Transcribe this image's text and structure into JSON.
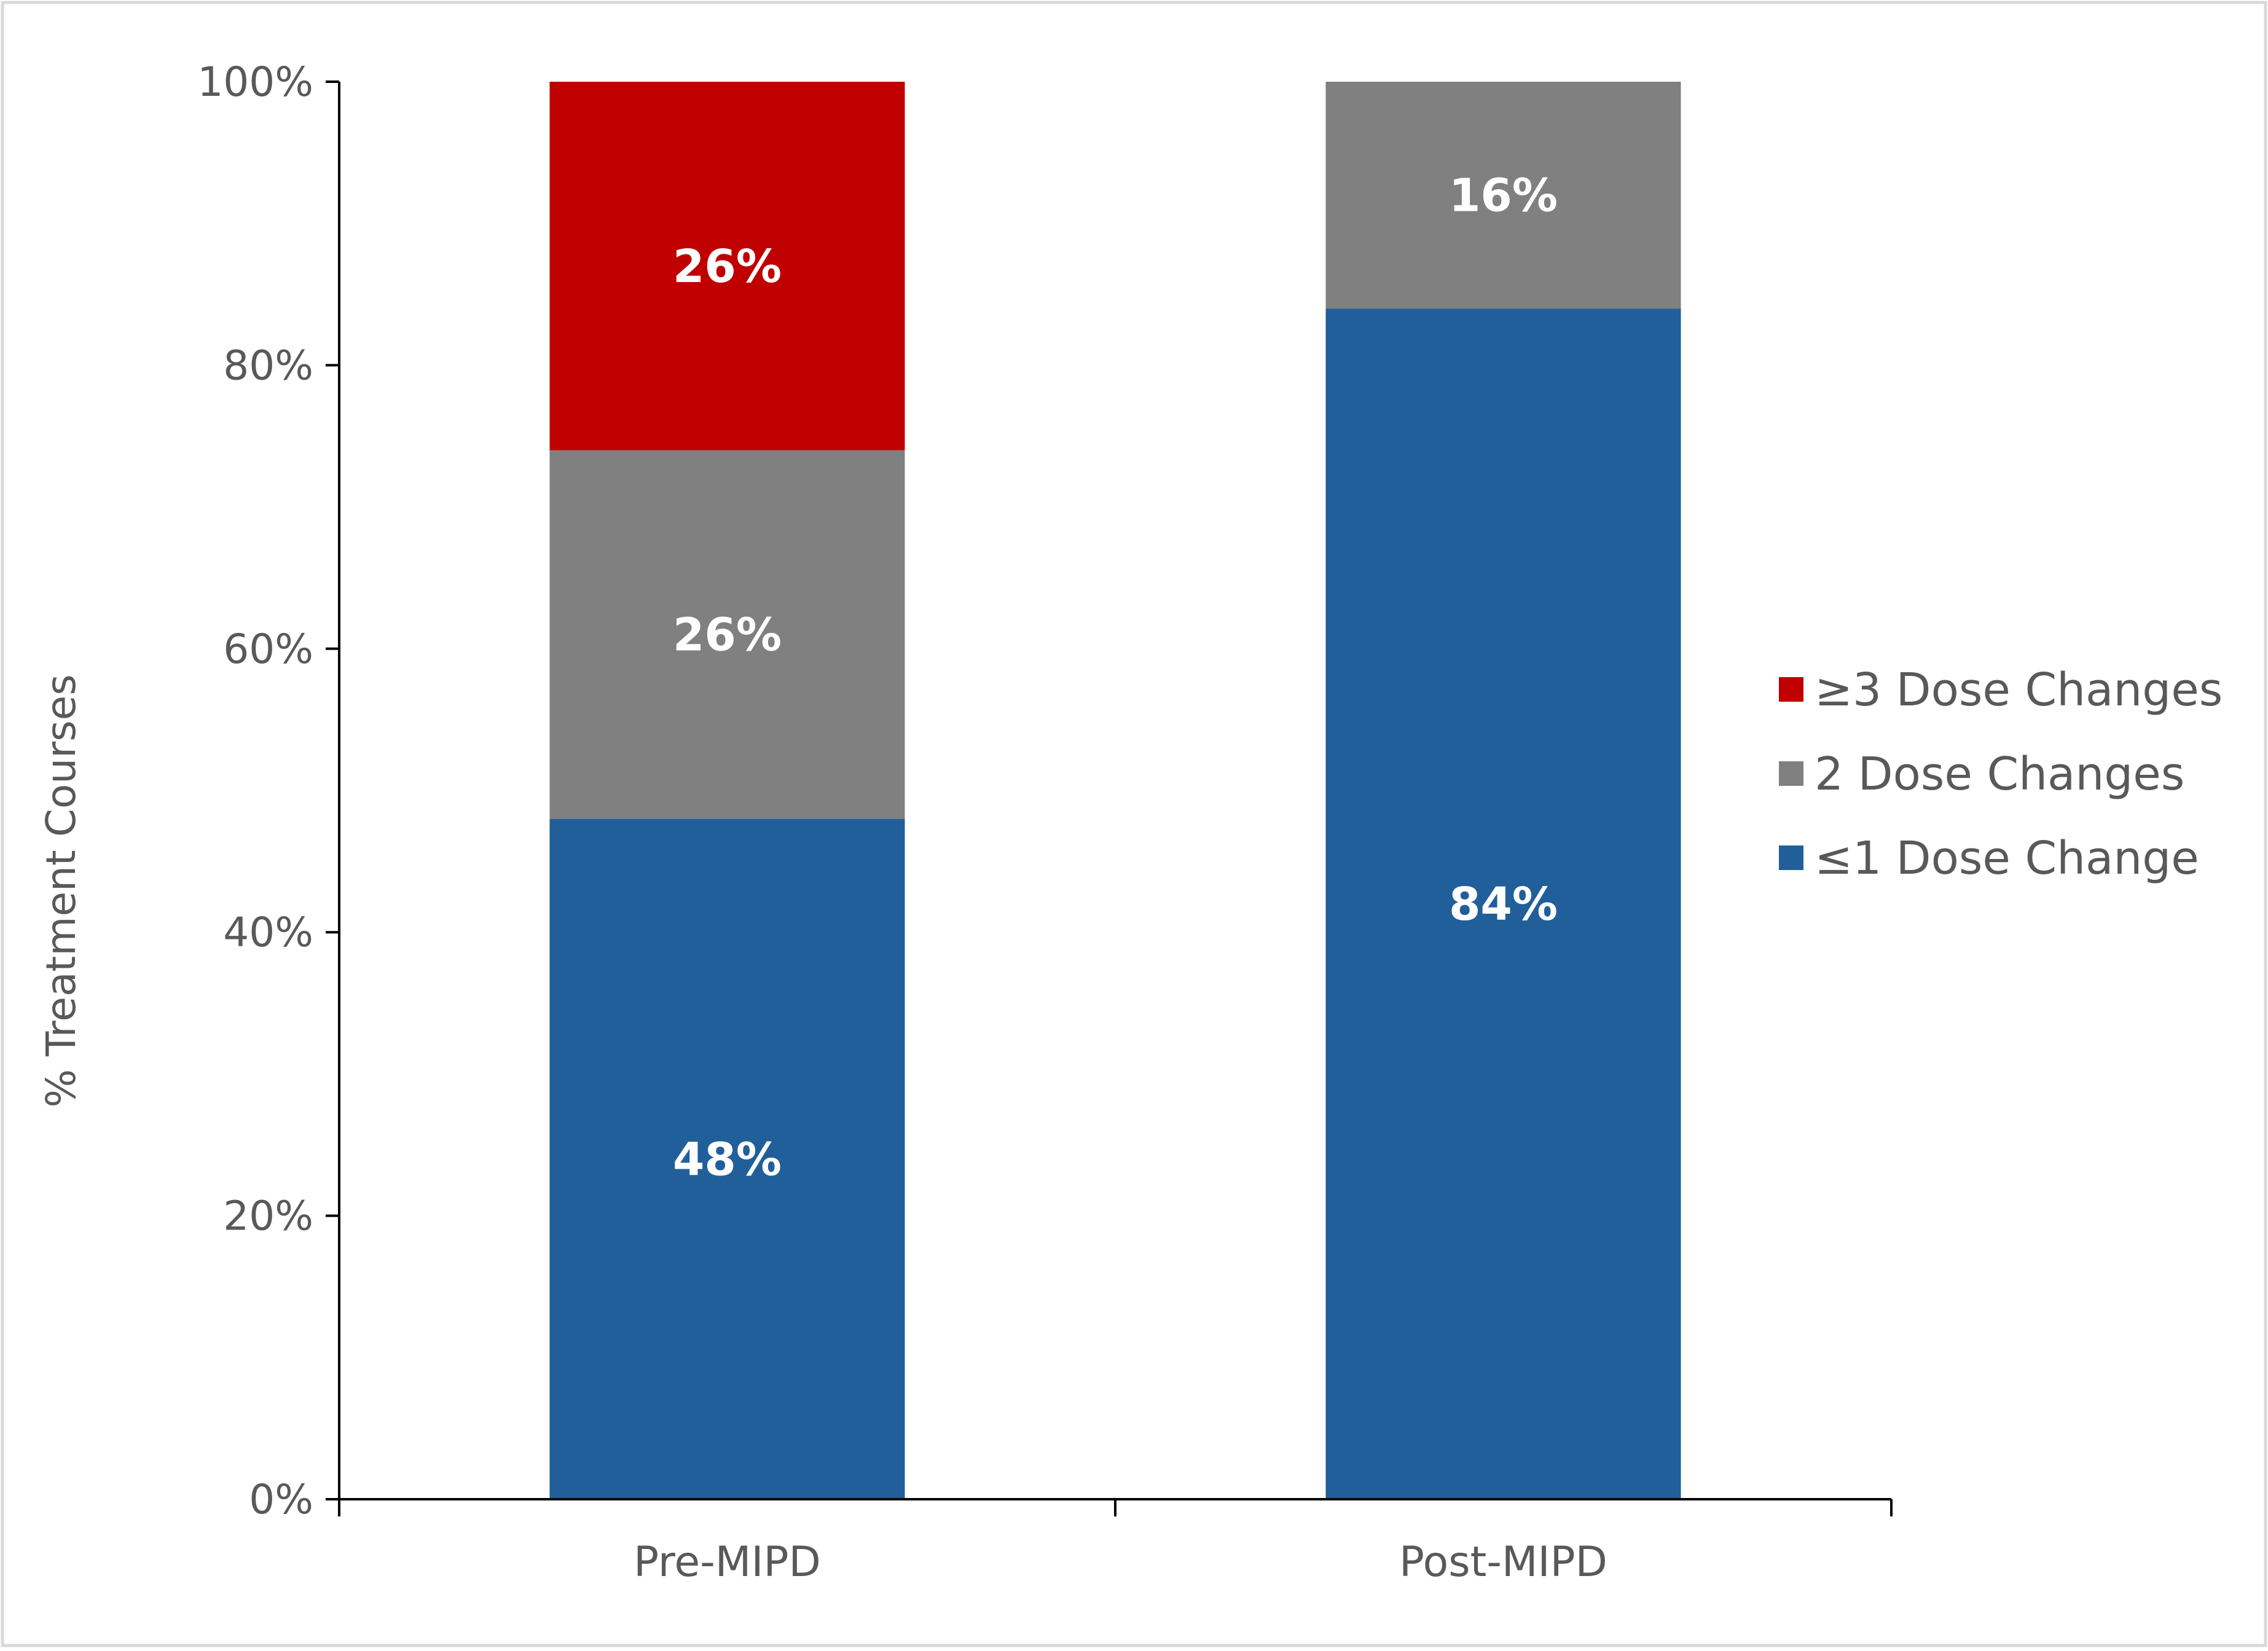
{
  "chart_data": {
    "type": "bar",
    "stacked": true,
    "categories": [
      "Pre-MIPD",
      "Post-MIPD"
    ],
    "series": [
      {
        "name": "≤1 Dose Change",
        "values": [
          48,
          84
        ],
        "color": "#215f9a",
        "labels": [
          "48%",
          "84%"
        ]
      },
      {
        "name": "2 Dose Changes",
        "values": [
          26,
          16
        ],
        "color": "#808080",
        "labels": [
          "26%",
          "16%"
        ]
      },
      {
        "name": "≥3 Dose Changes",
        "values": [
          26,
          0
        ],
        "color": "#c00000",
        "labels": [
          "26%",
          ""
        ]
      }
    ],
    "ylabel": "% Treatment Courses",
    "ylim": [
      0,
      100
    ],
    "yticks": [
      0,
      20,
      40,
      60,
      80,
      100
    ],
    "ytick_labels": [
      "0%",
      "20%",
      "40%",
      "60%",
      "80%",
      "100%"
    ],
    "grid": false,
    "legend": {
      "placement": "right",
      "entries": [
        "≥3 Dose Changes",
        "2 Dose Changes",
        "≤1 Dose Change"
      ]
    }
  }
}
